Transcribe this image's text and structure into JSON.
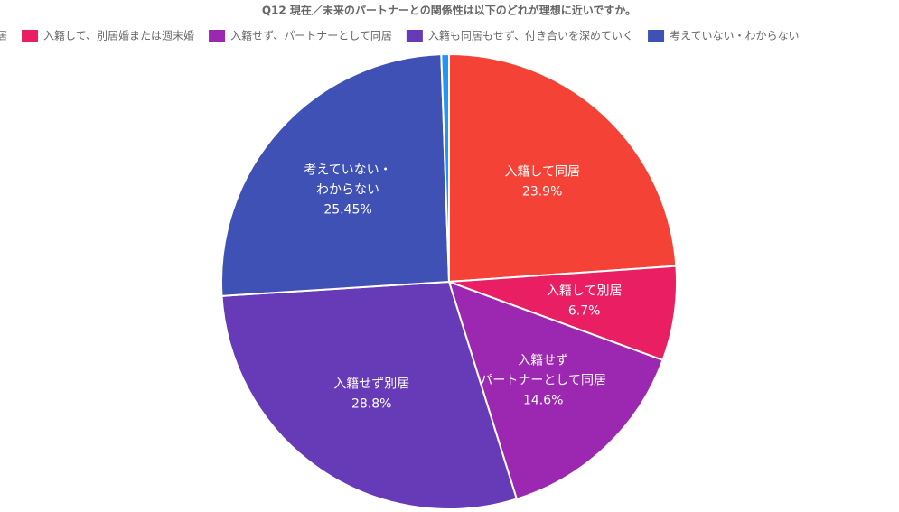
{
  "chart_data": {
    "type": "pie",
    "title": "Q12 現在／未来のパートナーとの関係性は以下のどれが理想に近いですか。",
    "categories": [
      [
        "入籍して同居"
      ],
      [
        "入籍して別居"
      ],
      [
        "入籍せず",
        "パートナーとして同居"
      ],
      [
        "入籍せず別居"
      ],
      [
        "考えていない・",
        "わからない"
      ],
      null
    ],
    "values": [
      23.9,
      6.7,
      14.6,
      28.8,
      25.45,
      0.55
    ],
    "value_labels": [
      "23.9%",
      "6.7%",
      "14.6%",
      "28.8%",
      "25.45%",
      null
    ],
    "colors": [
      "#f44336",
      "#e91e63",
      "#9c27b0",
      "#673ab7",
      "#3f51b5",
      "#2196f3"
    ],
    "legend": [
      "同居",
      "入籍して、別居婚または週末婚",
      "入籍せず、パートナーとして同居",
      "入籍も同居もせず、付き合いを深めていく",
      "考えていない・わからない"
    ]
  }
}
